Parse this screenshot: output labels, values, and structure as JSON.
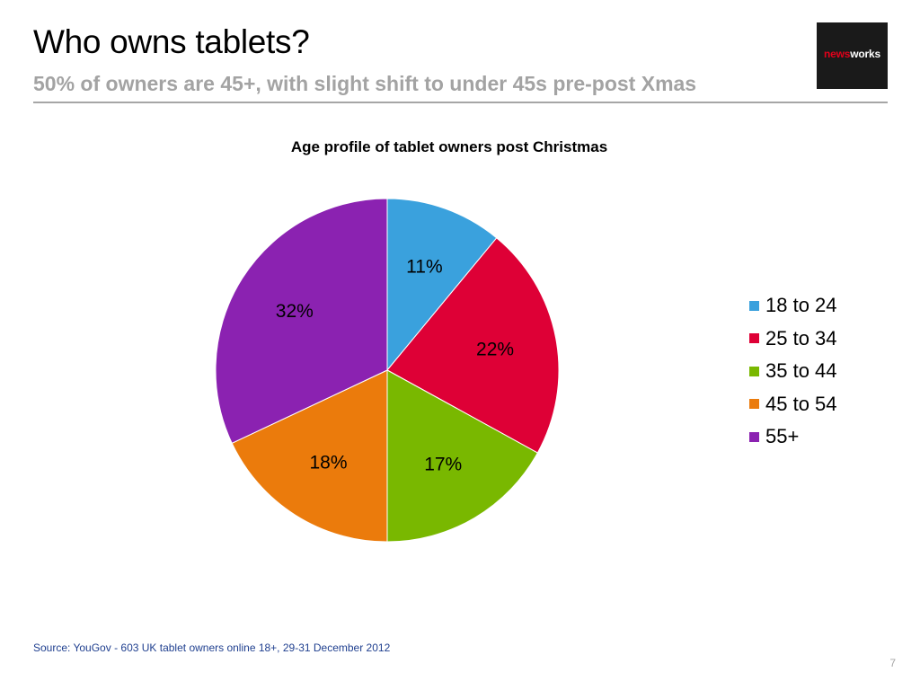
{
  "slide": {
    "title": "Who owns tablets?",
    "subtitle": "50% of owners are 45+, with slight shift to under 45s pre-post Xmas",
    "source": "Source: YouGov - 603 UK tablet owners online 18+, 29-31 December 2012",
    "page_number": "7"
  },
  "logo": {
    "text_part1": "news",
    "text_part2": "works",
    "background": "#1a1a1a",
    "accent": "#e2001a"
  },
  "chart_data": {
    "type": "pie",
    "title": "Age profile of tablet owners post Christmas",
    "categories": [
      "18 to 24",
      "25 to 34",
      "35 to 44",
      "45 to 54",
      "55+"
    ],
    "values": [
      11,
      22,
      17,
      18,
      32
    ],
    "labels": [
      "11%",
      "22%",
      "17%",
      "18%",
      "32%"
    ],
    "colors": [
      "#3aa1dd",
      "#de0036",
      "#79b800",
      "#eb7b0c",
      "#8b22b1"
    ],
    "legend_position": "right",
    "start": "12 o'clock",
    "direction": "clockwise"
  }
}
